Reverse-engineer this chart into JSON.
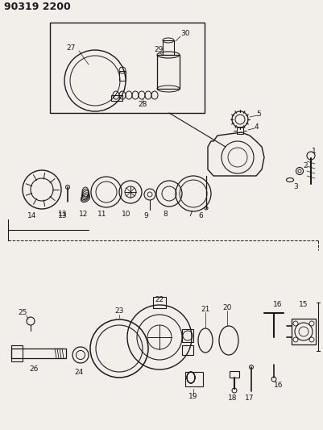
{
  "title": "90319 2200",
  "bg_color": "#f2eeea",
  "line_color": "#1a1a1a",
  "fig_width": 4.01,
  "fig_height": 5.33,
  "dpi": 100
}
